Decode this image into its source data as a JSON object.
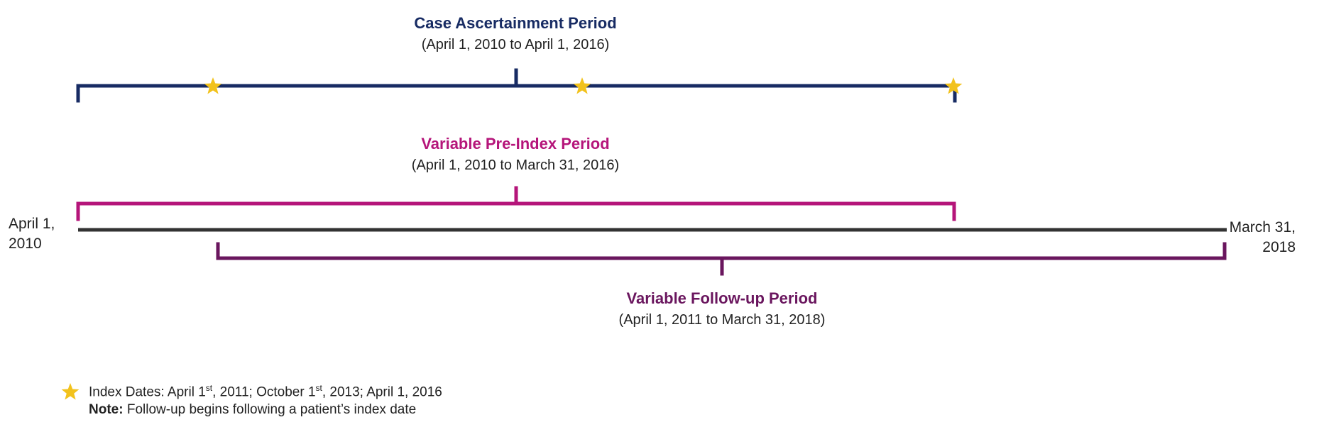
{
  "colors": {
    "case": "#172b63",
    "pre_index": "#b5157a",
    "follow_up": "#6a165e",
    "timeline": "#333333",
    "star": "#f2c21c"
  },
  "case_period": {
    "title": "Case Ascertainment Period",
    "range": "(April 1, 2010 to April 1, 2016)"
  },
  "pre_index_period": {
    "title": "Variable Pre-Index Period",
    "range": "(April 1, 2010 to March 31, 2016)"
  },
  "follow_up_period": {
    "title": "Variable Follow-up Period",
    "range": "(April 1, 2011 to March 31, 2018)"
  },
  "timeline": {
    "start_line1": "April 1,",
    "start_line2": "2010",
    "end_line1": "March 31,",
    "end_line2": "2018"
  },
  "index_stars": [
    {
      "icon": "star-icon",
      "date": "2011-04-01"
    },
    {
      "icon": "star-icon",
      "date": "2013-10-01"
    },
    {
      "icon": "star-icon",
      "date": "2016-04-01"
    }
  ],
  "legend": {
    "icon": "star-icon",
    "index_prefix": "Index Dates: April 1",
    "sup1": "st",
    "index_mid": ", 2011; October 1",
    "sup2": "st",
    "index_suffix": ", 2013; April 1, 2016",
    "note_label": "Note:",
    "note_text": " Follow-up begins following a patient’s index date"
  }
}
